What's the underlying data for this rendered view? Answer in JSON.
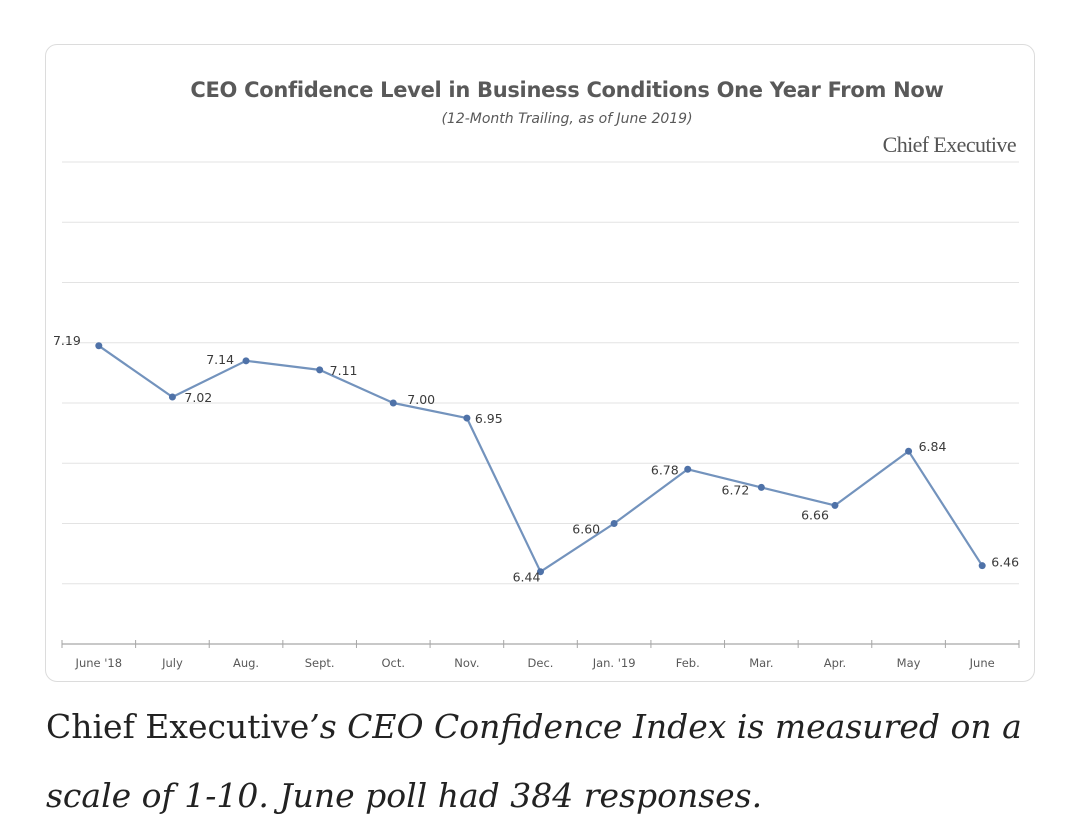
{
  "brand": "Chief Executive",
  "caption": {
    "plain": "Chief Executive",
    "italic": "’s CEO Confidence Index is measured on a scale of 1-10. June poll had 384 responses."
  },
  "chart_data": {
    "type": "line",
    "title": "CEO Confidence Level in Business Conditions One Year From Now",
    "subtitle": "(12-Month Trailing, as of June 2019)",
    "categories": [
      "June '18",
      "July",
      "Aug.",
      "Sept.",
      "Oct.",
      "Nov.",
      "Dec.",
      "Jan. '19",
      "Feb.",
      "Mar.",
      "Apr.",
      "May",
      "June"
    ],
    "values": [
      7.19,
      7.02,
      7.14,
      7.11,
      7.0,
      6.95,
      6.44,
      6.6,
      6.78,
      6.72,
      6.66,
      6.84,
      6.46
    ],
    "ylim": [
      6.2,
      7.8
    ],
    "grid": true,
    "colors": {
      "line": "#7393bd",
      "marker": "#4f72a8",
      "grid": "#e3e3e3",
      "axis": "#a6a6a6",
      "label": "#3a3a3a",
      "tick": "#595959"
    }
  }
}
